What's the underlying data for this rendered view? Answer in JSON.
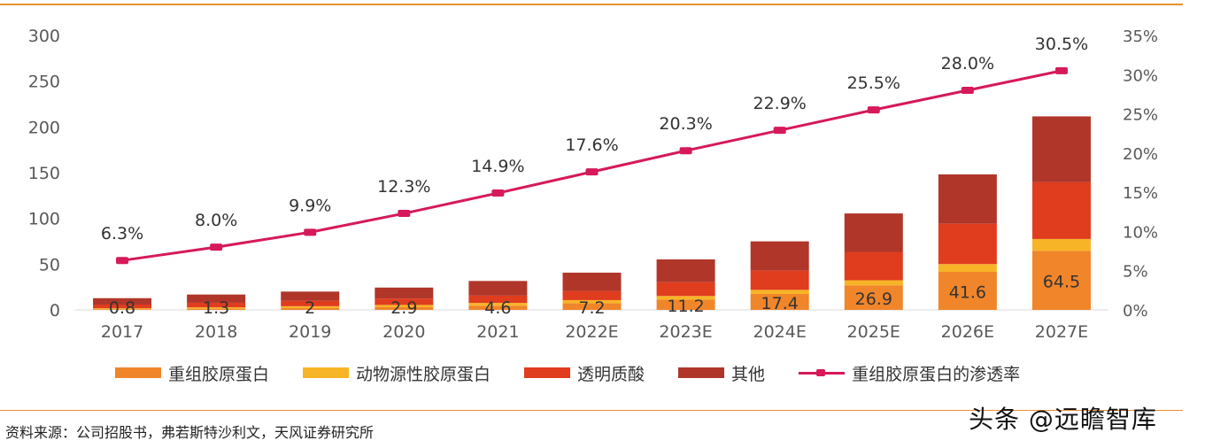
{
  "chart_data": {
    "type": "bar",
    "stacked": true,
    "categories": [
      "2017",
      "2018",
      "2019",
      "2020",
      "2021",
      "2022E",
      "2023E",
      "2024E",
      "2025E",
      "2026E",
      "2027E"
    ],
    "series": [
      {
        "name": "重组胶原蛋白",
        "color": "#f0852a",
        "values": [
          0.8,
          1.3,
          2,
          2.9,
          4.6,
          7.2,
          11.2,
          17.4,
          26.9,
          41.6,
          64.5
        ],
        "labels": [
          "0.8",
          "1.3",
          "2",
          "2.9",
          "4.6",
          "7.2",
          "11.2",
          "17.4",
          "26.9",
          "41.6",
          "64.5"
        ]
      },
      {
        "name": "动物源性胶原蛋白",
        "color": "#f8b427",
        "values": [
          1,
          1.5,
          2,
          2.5,
          3,
          3.5,
          4,
          4.5,
          5.5,
          8.5,
          13
        ]
      },
      {
        "name": "透明质酸",
        "color": "#e03c1e",
        "values": [
          4,
          5,
          6,
          7,
          8,
          10,
          15,
          21,
          31,
          44,
          62
        ]
      },
      {
        "name": "其他",
        "color": "#b0362a",
        "values": [
          7,
          9,
          10,
          12,
          16,
          20,
          25,
          32,
          42,
          54,
          72
        ]
      }
    ],
    "line": {
      "name": "重组胶原蛋白的渗透率",
      "color": "#d6195a",
      "values": [
        6.3,
        8.0,
        9.9,
        12.3,
        14.9,
        17.6,
        20.3,
        22.9,
        25.5,
        28.0,
        30.5
      ],
      "labels": [
        "6.3%",
        "8.0%",
        "9.9%",
        "12.3%",
        "14.9%",
        "17.6%",
        "20.3%",
        "22.9%",
        "25.5%",
        "28.0%",
        "30.5%"
      ],
      "axis": "right"
    },
    "left_axis": {
      "range": [
        0,
        300
      ],
      "ticks": [
        "0",
        "50",
        "100",
        "150",
        "200",
        "250",
        "300"
      ]
    },
    "right_axis": {
      "range": [
        0,
        35
      ],
      "ticks": [
        "0%",
        "5%",
        "10%",
        "15%",
        "20%",
        "25%",
        "30%",
        "35%"
      ]
    },
    "legend_position": "bottom"
  },
  "legend": [
    {
      "label": "重组胶原蛋白",
      "color": "#f0852a",
      "kind": "bar"
    },
    {
      "label": "动物源性胶原蛋白",
      "color": "#f8b427",
      "kind": "bar"
    },
    {
      "label": "透明质酸",
      "color": "#e03c1e",
      "kind": "bar"
    },
    {
      "label": "其他",
      "color": "#b0362a",
      "kind": "bar"
    },
    {
      "label": "重组胶原蛋白的渗透率",
      "color": "#d6195a",
      "kind": "line"
    }
  ],
  "source_text": "资料来源：公司招股书，弗若斯特沙利文，天风证券研究所",
  "watermark_text": "头条 @远瞻智库",
  "colors": {
    "rule": "#e8912f",
    "axis_text": "#595959"
  }
}
